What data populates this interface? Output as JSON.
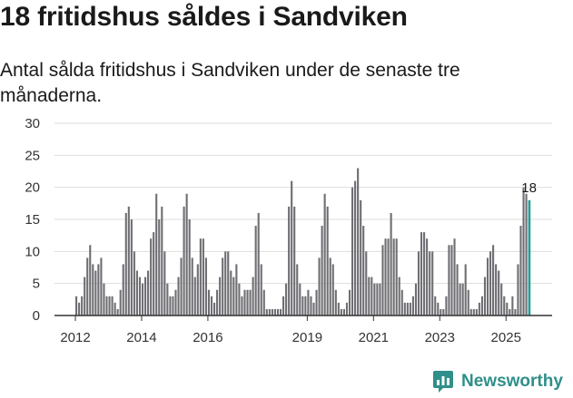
{
  "header": {
    "title": "18 fritidshus såldes i Sandviken",
    "subtitle": "Antal sålda fritidshus i Sandviken under de senaste tre månaderna."
  },
  "brand": {
    "name": "Newsworthy",
    "color": "#2f8f8a"
  },
  "colors": {
    "bar": "#6e6e73",
    "highlight": "#2a9d96",
    "grid": "#dddddd",
    "axis": "#333333"
  },
  "chart_data": {
    "type": "bar",
    "title": "Antal sålda fritidshus i Sandviken under de senaste tre månaderna.",
    "ylabel": "",
    "xlabel": "",
    "ylim": [
      0,
      30
    ],
    "yticks": [
      0,
      5,
      10,
      15,
      20,
      25,
      30
    ],
    "x_axis": {
      "start_year": 2012,
      "start_month": 1,
      "interval": "month"
    },
    "xticks": [
      {
        "label": "2012",
        "year": 2012
      },
      {
        "label": "2014",
        "year": 2014
      },
      {
        "label": "2016",
        "year": 2016
      },
      {
        "label": "2019",
        "year": 2019
      },
      {
        "label": "2021",
        "year": 2021
      },
      {
        "label": "2023",
        "year": 2023
      },
      {
        "label": "2025",
        "year": 2025
      }
    ],
    "values": [
      3,
      2,
      3,
      6,
      9,
      11,
      8,
      7,
      8,
      9,
      5,
      3,
      3,
      3,
      2,
      1,
      4,
      8,
      16,
      17,
      15,
      10,
      7,
      6,
      5,
      6,
      7,
      12,
      13,
      19,
      15,
      17,
      10,
      5,
      3,
      3,
      4,
      6,
      9,
      17,
      19,
      15,
      9,
      6,
      8,
      12,
      12,
      9,
      4,
      3,
      2,
      4,
      6,
      9,
      10,
      10,
      7,
      6,
      8,
      5,
      3,
      4,
      4,
      4,
      6,
      14,
      16,
      8,
      4,
      1,
      1,
      1,
      1,
      1,
      1,
      3,
      5,
      17,
      21,
      17,
      8,
      5,
      3,
      3,
      4,
      3,
      2,
      4,
      9,
      14,
      19,
      17,
      9,
      8,
      4,
      2,
      1,
      1,
      2,
      4,
      20,
      21,
      23,
      18,
      14,
      10,
      6,
      6,
      5,
      5,
      5,
      11,
      12,
      12,
      16,
      12,
      12,
      6,
      4,
      2,
      2,
      2,
      3,
      5,
      10,
      13,
      13,
      12,
      10,
      10,
      3,
      2,
      1,
      1,
      3,
      11,
      11,
      12,
      8,
      5,
      5,
      8,
      4,
      1,
      1,
      1,
      2,
      3,
      6,
      9,
      10,
      11,
      8,
      7,
      5,
      3,
      2,
      1,
      3,
      1,
      8,
      14,
      20,
      19,
      18
    ],
    "highlight_last": true,
    "data_labels": [
      {
        "index": 164,
        "text": "18"
      }
    ]
  }
}
